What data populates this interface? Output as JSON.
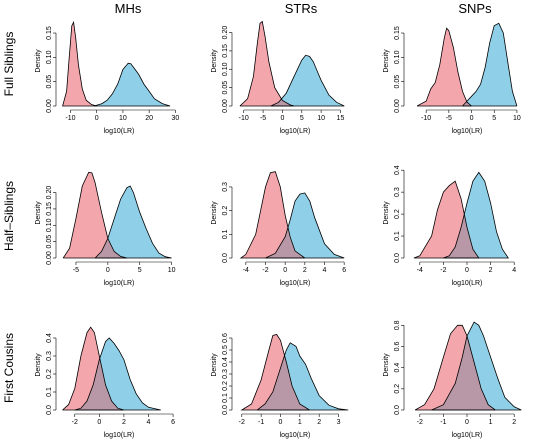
{
  "figure": {
    "columns": [
      "MHs",
      "STRs",
      "SNPs"
    ],
    "rows": [
      "Full Siblings",
      "Half–Siblings",
      "First Cousins"
    ],
    "colors": {
      "unrelated": "#f4a6ad",
      "related": "#8fd0e8",
      "overlap": "#b897a6"
    }
  },
  "chart_data": [
    {
      "type": "area",
      "column": "MHs",
      "row": "Full Siblings",
      "xlabel": "log10(LR)",
      "ylabel": "Density",
      "xlim": [
        -14,
        31
      ],
      "ylim": [
        0,
        0.185
      ],
      "xticks": [
        -10,
        0,
        10,
        20,
        30
      ],
      "yticks": [
        0.0,
        0.05,
        0.1,
        0.15
      ],
      "series": [
        {
          "x": [
            -13,
            -11.5,
            -10.5,
            -9.5,
            -8.8,
            -8,
            -7,
            -5.5,
            -4,
            -2,
            0
          ],
          "y": [
            0,
            0.03,
            0.1,
            0.165,
            0.172,
            0.14,
            0.085,
            0.035,
            0.012,
            0.003,
            0
          ]
        },
        {
          "x": [
            -1,
            2,
            4,
            6,
            8,
            10,
            12,
            13,
            14,
            16,
            18,
            20,
            22,
            25,
            28
          ],
          "y": [
            0,
            0.005,
            0.012,
            0.025,
            0.045,
            0.075,
            0.088,
            0.087,
            0.08,
            0.065,
            0.045,
            0.03,
            0.015,
            0.005,
            0
          ]
        }
      ]
    },
    {
      "type": "area",
      "column": "STRs",
      "row": "Full Siblings",
      "xlabel": "log10(LR)",
      "ylabel": "Density",
      "xlim": [
        -12,
        18.5
      ],
      "ylim": [
        0,
        0.245
      ],
      "xticks": [
        -10,
        -5,
        0,
        5,
        10,
        15
      ],
      "yticks": [
        0.0,
        0.05,
        0.1,
        0.15,
        0.2
      ],
      "series": [
        {
          "x": [
            -11,
            -9,
            -7.5,
            -6.5,
            -5.8,
            -5.2,
            -4.5,
            -3.5,
            -2,
            0,
            2,
            3
          ],
          "y": [
            0,
            0.02,
            0.08,
            0.17,
            0.225,
            0.23,
            0.19,
            0.12,
            0.05,
            0.015,
            0.003,
            0
          ]
        },
        {
          "x": [
            -3,
            -1,
            1,
            3,
            5,
            6,
            7,
            8,
            9,
            10,
            12,
            14,
            16
          ],
          "y": [
            0,
            0.01,
            0.035,
            0.08,
            0.125,
            0.138,
            0.135,
            0.12,
            0.095,
            0.07,
            0.03,
            0.01,
            0
          ]
        }
      ]
    },
    {
      "type": "area",
      "column": "SNPs",
      "row": "Full Siblings",
      "xlabel": "log10(LR)",
      "ylabel": "Density",
      "xlim": [
        -14,
        12
      ],
      "ylim": [
        0,
        0.185
      ],
      "xticks": [
        -10,
        -5,
        0,
        5,
        10
      ],
      "yticks": [
        0.0,
        0.05,
        0.1,
        0.15
      ],
      "series": [
        {
          "x": [
            -12,
            -10,
            -9,
            -8,
            -7,
            -6,
            -5.5,
            -5,
            -4,
            -3,
            -2,
            -1,
            0
          ],
          "y": [
            0,
            0.01,
            0.035,
            0.048,
            0.085,
            0.14,
            0.16,
            0.155,
            0.12,
            0.07,
            0.03,
            0.008,
            0
          ]
        },
        {
          "x": [
            -2,
            -1,
            0,
            1,
            2,
            3,
            4,
            5,
            6,
            7,
            8,
            9,
            10
          ],
          "y": [
            0,
            0.01,
            0.02,
            0.03,
            0.045,
            0.08,
            0.13,
            0.165,
            0.17,
            0.15,
            0.09,
            0.03,
            0
          ]
        }
      ]
    },
    {
      "type": "area",
      "column": "MHs",
      "row": "Half–Siblings",
      "xlabel": "log10(LR)",
      "ylabel": "Density",
      "xlim": [
        -7.5,
        11
      ],
      "ylim": [
        0,
        0.275
      ],
      "xticks": [
        -5,
        0,
        5,
        10
      ],
      "yticks": [
        0.0,
        0.05,
        0.1,
        0.15,
        0.2
      ],
      "series": [
        {
          "x": [
            -7,
            -6,
            -5,
            -4,
            -3,
            -2.5,
            -2,
            -1,
            0,
            1,
            2,
            3
          ],
          "y": [
            0,
            0.03,
            0.12,
            0.22,
            0.262,
            0.26,
            0.23,
            0.14,
            0.06,
            0.02,
            0.005,
            0
          ]
        },
        {
          "x": [
            -2,
            -1,
            0,
            1,
            2,
            3,
            3.5,
            4,
            5,
            6,
            7,
            8,
            9,
            10
          ],
          "y": [
            0,
            0.02,
            0.06,
            0.12,
            0.18,
            0.215,
            0.22,
            0.2,
            0.14,
            0.09,
            0.045,
            0.015,
            0.004,
            0
          ]
        }
      ]
    },
    {
      "type": "area",
      "column": "STRs",
      "row": "Half–Siblings",
      "xlabel": "log10(LR)",
      "ylabel": "Density",
      "xlim": [
        -5,
        7
      ],
      "ylim": [
        0,
        0.38
      ],
      "xticks": [
        -4,
        -2,
        0,
        2,
        4,
        6
      ],
      "yticks": [
        0.0,
        0.1,
        0.2,
        0.3
      ],
      "series": [
        {
          "x": [
            -4.5,
            -4,
            -3,
            -2.5,
            -2,
            -1.5,
            -1,
            -0.5,
            0,
            0.5,
            1,
            2
          ],
          "y": [
            0,
            0.015,
            0.1,
            0.2,
            0.3,
            0.36,
            0.365,
            0.3,
            0.18,
            0.09,
            0.03,
            0
          ]
        },
        {
          "x": [
            -2,
            -1,
            0,
            0.5,
            1,
            1.5,
            2,
            2.5,
            3,
            4,
            5,
            6
          ],
          "y": [
            0,
            0.02,
            0.09,
            0.16,
            0.24,
            0.27,
            0.275,
            0.24,
            0.17,
            0.06,
            0.015,
            0
          ]
        }
      ]
    },
    {
      "type": "area",
      "column": "SNPs",
      "row": "Half–Siblings",
      "xlabel": "log10(LR)",
      "ylabel": "Density",
      "xlim": [
        -5,
        5
      ],
      "ylim": [
        0,
        0.41
      ],
      "xticks": [
        -4,
        -2,
        0,
        2,
        4
      ],
      "yticks": [
        0.0,
        0.1,
        0.2,
        0.3,
        0.4
      ],
      "series": [
        {
          "x": [
            -4.5,
            -4,
            -3,
            -2.5,
            -2,
            -1.5,
            -1,
            -0.5,
            0,
            0.5,
            1
          ],
          "y": [
            0,
            0.01,
            0.1,
            0.22,
            0.3,
            0.33,
            0.35,
            0.27,
            0.14,
            0.04,
            0
          ]
        },
        {
          "x": [
            -2,
            -1.5,
            -1,
            -0.5,
            0,
            0.5,
            1,
            1.5,
            2,
            2.5,
            3,
            3.5
          ],
          "y": [
            0,
            0.01,
            0.05,
            0.14,
            0.25,
            0.35,
            0.39,
            0.35,
            0.25,
            0.12,
            0.04,
            0
          ]
        }
      ]
    },
    {
      "type": "area",
      "column": "MHs",
      "row": "First Cousins",
      "xlabel": "log10(LR)",
      "ylabel": "Density",
      "xlim": [
        -3.2,
        6.4
      ],
      "ylim": [
        0,
        0.5
      ],
      "xticks": [
        -2,
        0,
        2,
        4,
        6
      ],
      "yticks": [
        0.0,
        0.1,
        0.2,
        0.3,
        0.4
      ],
      "series": [
        {
          "x": [
            -3,
            -2.5,
            -2,
            -1.5,
            -1,
            -0.7,
            -0.4,
            0,
            0.5,
            1,
            1.5,
            2
          ],
          "y": [
            0,
            0.03,
            0.12,
            0.3,
            0.43,
            0.46,
            0.43,
            0.3,
            0.14,
            0.05,
            0.01,
            0
          ]
        },
        {
          "x": [
            -2,
            -1.5,
            -1,
            -0.5,
            0,
            0.5,
            0.8,
            1.2,
            1.6,
            2,
            2.5,
            3,
            3.5,
            4,
            5
          ],
          "y": [
            0,
            0.01,
            0.05,
            0.14,
            0.28,
            0.38,
            0.4,
            0.37,
            0.33,
            0.28,
            0.17,
            0.09,
            0.04,
            0.015,
            0
          ]
        }
      ]
    },
    {
      "type": "area",
      "column": "STRs",
      "row": "First Cousins",
      "xlabel": "log10(LR)",
      "ylabel": "Density",
      "xlim": [
        -2.3,
        3.8
      ],
      "ylim": [
        0,
        0.75
      ],
      "xticks": [
        -2,
        -1,
        0,
        1,
        2,
        3
      ],
      "yticks": [
        0.0,
        0.1,
        0.2,
        0.3,
        0.4,
        0.5,
        0.6
      ],
      "series": [
        {
          "x": [
            -2,
            -1.5,
            -1,
            -0.6,
            -0.4,
            -0.2,
            0,
            0.3,
            0.6,
            1,
            1.5
          ],
          "y": [
            0,
            0.05,
            0.25,
            0.5,
            0.62,
            0.63,
            0.58,
            0.4,
            0.2,
            0.05,
            0
          ]
        },
        {
          "x": [
            -1.2,
            -0.8,
            -0.4,
            0,
            0.3,
            0.5,
            0.8,
            1,
            1.3,
            1.6,
            2,
            2.5,
            3,
            3.5
          ],
          "y": [
            0,
            0.05,
            0.15,
            0.35,
            0.5,
            0.56,
            0.53,
            0.45,
            0.38,
            0.26,
            0.12,
            0.04,
            0.01,
            0
          ]
        }
      ]
    },
    {
      "type": "area",
      "column": "SNPs",
      "row": "First Cousins",
      "xlabel": "log10(LR)",
      "ylabel": "Density",
      "xlim": [
        -2.5,
        2.5
      ],
      "ylim": [
        0,
        0.85
      ],
      "xticks": [
        -2,
        -1,
        0,
        1,
        2
      ],
      "yticks": [
        0.0,
        0.2,
        0.4,
        0.6,
        0.8
      ],
      "series": [
        {
          "x": [
            -2.2,
            -1.8,
            -1.4,
            -1,
            -0.7,
            -0.4,
            -0.2,
            0,
            0.3,
            0.6,
            0.9,
            1.2
          ],
          "y": [
            0,
            0.05,
            0.2,
            0.5,
            0.72,
            0.8,
            0.8,
            0.7,
            0.45,
            0.2,
            0.05,
            0
          ]
        },
        {
          "x": [
            -1.5,
            -1,
            -0.5,
            -0.2,
            0,
            0.3,
            0.5,
            0.7,
            1,
            1.3,
            1.6,
            2,
            2.3
          ],
          "y": [
            0,
            0.05,
            0.25,
            0.5,
            0.7,
            0.83,
            0.8,
            0.7,
            0.5,
            0.3,
            0.12,
            0.03,
            0
          ]
        }
      ]
    }
  ]
}
